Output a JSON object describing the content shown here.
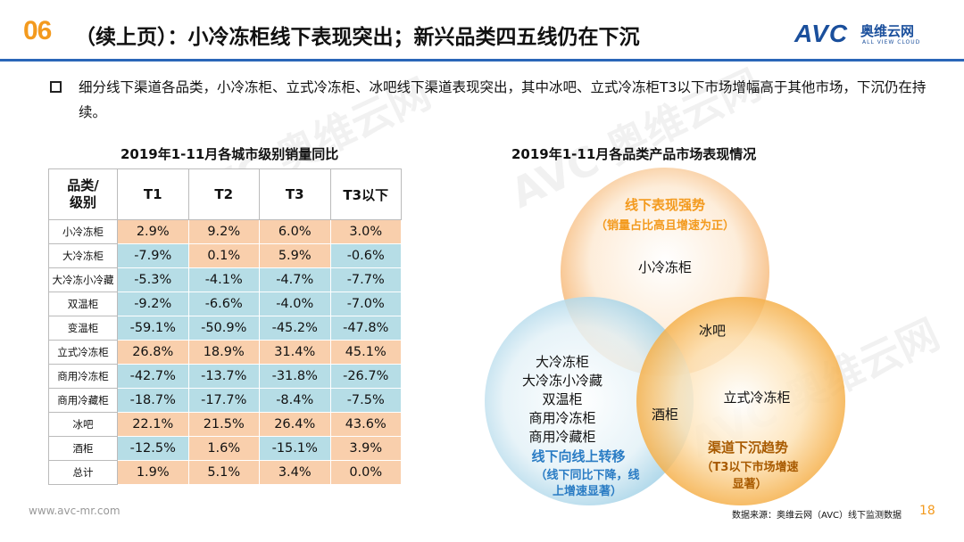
{
  "header": {
    "page_no": "06",
    "title": "（续上页）：小冷冻柜线下表现突出；新兴品类四五线仍在下沉",
    "logo_avc": "AVC",
    "logo_cn": "奥维云网",
    "logo_en": "ALL VIEW CLOUD",
    "accent_color": "#f39a1e",
    "brand_color": "#1a4f9c"
  },
  "summary": "细分线下渠道各品类，小冷冻柜、立式冷冻柜、冰吧线下渠道表现突出，其中冰吧、立式冷冻柜T3以下市场增幅高于其他市场，下沉仍在持续。",
  "table": {
    "title": "2019年1-11月各城市级别销量同比",
    "corner": "品类/\n级别",
    "columns": [
      "T1",
      "T2",
      "T3",
      "T3以下"
    ],
    "rows": [
      {
        "label": "小冷冻柜",
        "values": [
          "2.9%",
          "9.2%",
          "6.0%",
          "3.0%"
        ]
      },
      {
        "label": "大冷冻柜",
        "values": [
          "-7.9%",
          "0.1%",
          "5.9%",
          "-0.6%"
        ]
      },
      {
        "label": "大冷冻小冷藏",
        "values": [
          "-5.3%",
          "-4.1%",
          "-4.7%",
          "-7.7%"
        ]
      },
      {
        "label": "双温柜",
        "values": [
          "-9.2%",
          "-6.6%",
          "-4.0%",
          "-7.0%"
        ]
      },
      {
        "label": "变温柜",
        "values": [
          "-59.1%",
          "-50.9%",
          "-45.2%",
          "-47.8%"
        ]
      },
      {
        "label": "立式冷冻柜",
        "values": [
          "26.8%",
          "18.9%",
          "31.4%",
          "45.1%"
        ]
      },
      {
        "label": "商用冷冻柜",
        "values": [
          "-42.7%",
          "-13.7%",
          "-31.8%",
          "-26.7%"
        ]
      },
      {
        "label": "商用冷藏柜",
        "values": [
          "-18.7%",
          "-17.7%",
          "-8.4%",
          "-7.5%"
        ]
      },
      {
        "label": "冰吧",
        "values": [
          "22.1%",
          "21.5%",
          "26.4%",
          "43.6%"
        ]
      },
      {
        "label": "酒柜",
        "values": [
          "-12.5%",
          "1.6%",
          "-15.1%",
          "3.9%"
        ]
      },
      {
        "label": "总计",
        "values": [
          "1.9%",
          "5.1%",
          "3.4%",
          "0.0%"
        ]
      }
    ],
    "pos_color": "#f9cfac",
    "neg_color": "#b6dde6"
  },
  "venn": {
    "title": "2019年1-11月各品类产品市场表现情况",
    "top": {
      "heading": "线下表现强势",
      "sub": "（销量占比高且增速为正）",
      "items": [
        "小冷冻柜"
      ],
      "color": "#f39a1e"
    },
    "left": {
      "items": [
        "大冷冻柜",
        "大冷冻小冷藏",
        "双温柜",
        "商用冷冻柜",
        "商用冷藏柜"
      ],
      "heading": "线下向线上转移",
      "sub_lines": [
        "（线下同比下降，线",
        "上增速显著）"
      ],
      "color": "#2a7cc4"
    },
    "right": {
      "items": [
        "立式冷冻柜"
      ],
      "heading": "渠道下沉趋势",
      "sub_lines": [
        "（T3以下市场增速",
        "显著）"
      ],
      "color": "#a85a00"
    },
    "overlap_top_right": "冰吧",
    "overlap_left_right": "酒柜"
  },
  "footer": {
    "source": "数据来源：奥维云网（AVC）线下监测数据",
    "page": "18",
    "site": "www.avc-mr.com"
  }
}
